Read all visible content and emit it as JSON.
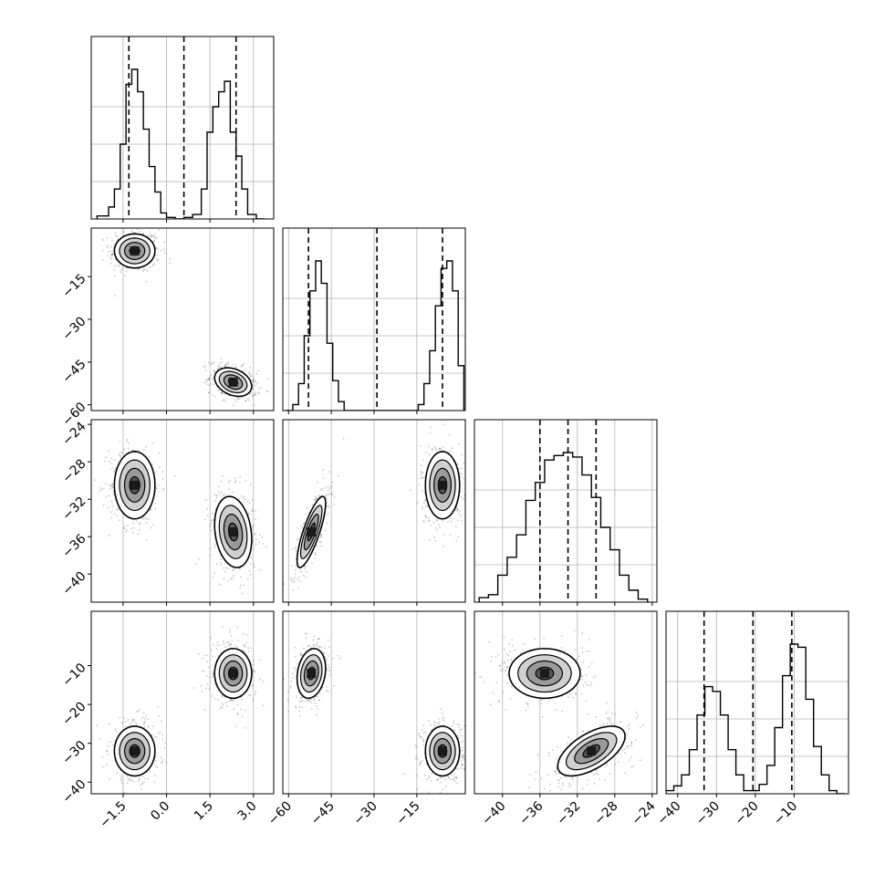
{
  "chart_data": {
    "type": "corner",
    "parameters": 4,
    "grid": true,
    "axis_ticks": [
      [
        "-1.5",
        "0.0",
        "1.5",
        "3.0"
      ],
      [
        "-60",
        "-45",
        "-30",
        "-15"
      ],
      [
        "-40",
        "-36",
        "-32",
        "-28",
        "-24"
      ],
      [
        "-40",
        "-30",
        "-20",
        "-10"
      ]
    ],
    "axis_ranges": [
      [
        -2.6,
        3.7
      ],
      [
        -62,
        2
      ],
      [
        -43,
        -23.5
      ],
      [
        -43,
        4
      ]
    ],
    "histograms": [
      {
        "param": 0,
        "quantiles": [
          -1.3,
          0.6,
          2.4
        ],
        "bin_edges": [
          -2.4,
          -2.0,
          -1.8,
          -1.6,
          -1.4,
          -1.2,
          -1.0,
          -0.8,
          -0.6,
          -0.4,
          -0.2,
          0.0,
          0.3,
          0.6,
          0.9,
          1.2,
          1.4,
          1.6,
          1.8,
          2.0,
          2.2,
          2.4,
          2.6,
          2.8,
          3.1,
          3.4
        ],
        "counts": [
          2,
          8,
          20,
          50,
          90,
          100,
          85,
          60,
          35,
          18,
          4,
          1,
          0,
          1,
          3,
          20,
          58,
          75,
          85,
          92,
          58,
          42,
          20,
          3,
          0
        ]
      },
      {
        "param": 1,
        "quantiles": [
          -53,
          -29,
          -6
        ],
        "bin_edges": [
          -61.0,
          -58.5,
          -56.5,
          -54.5,
          -52.5,
          -50.5,
          -48.5,
          -46.5,
          -44.5,
          -42.5,
          -40.5,
          -37.5,
          -33.5,
          -29.5,
          -25.5,
          -21.5,
          -18.5,
          -16.5,
          -14.5,
          -12.5,
          -10.5,
          -8.5,
          -6.5,
          -4.5,
          -2.5,
          -0.5,
          1.5
        ],
        "counts": [
          0,
          4,
          18,
          50,
          80,
          100,
          85,
          45,
          20,
          6,
          0,
          0,
          0,
          0,
          0,
          0,
          0,
          0,
          4,
          18,
          40,
          70,
          95,
          100,
          80,
          30
        ]
      },
      {
        "param": 2,
        "quantiles": [
          -36.0,
          -33.0,
          -30.0
        ],
        "bin_edges": [
          -42.5,
          -41.5,
          -40.5,
          -39.5,
          -38.5,
          -37.5,
          -36.5,
          -35.5,
          -34.5,
          -33.5,
          -32.5,
          -31.5,
          -30.5,
          -29.5,
          -28.5,
          -27.5,
          -26.5,
          -25.5,
          -24.5
        ],
        "counts": [
          3,
          5,
          18,
          30,
          45,
          68,
          80,
          95,
          98,
          100,
          97,
          85,
          70,
          50,
          35,
          18,
          8,
          2
        ]
      },
      {
        "param": 3,
        "quantiles": [
          -33.2,
          -20.6,
          -10.6
        ],
        "bin_edges": [
          -43,
          -41,
          -39,
          -37,
          -35,
          -33,
          -31,
          -29,
          -27,
          -25,
          -23,
          -21,
          -19,
          -17,
          -15,
          -13,
          -11,
          -9,
          -7,
          -5,
          -3,
          -1,
          1,
          3
        ],
        "counts": [
          2,
          5,
          12,
          28,
          50,
          68,
          65,
          50,
          28,
          12,
          2,
          2,
          6,
          18,
          42,
          75,
          95,
          93,
          60,
          30,
          12,
          2,
          0
        ]
      }
    ],
    "joint_modes": [
      {
        "param_values": [
          -1.1,
          -6.0,
          -30.5,
          -32.0
        ],
        "widths": [
          0.35,
          3.0,
          1.8,
          3.2
        ],
        "rho": {
          "0-1": 0.0,
          "0-2": 0.0,
          "0-3": 0.0,
          "1-2": 0.0,
          "1-3": 0.0,
          "2-3": 0.6
        }
      },
      {
        "param_values": [
          2.3,
          -52.0,
          -35.5,
          -12.0
        ],
        "widths": [
          0.32,
          2.5,
          1.9,
          3.2
        ],
        "rho": {
          "0-1": -0.3,
          "0-2": -0.2,
          "0-3": 0.0,
          "1-2": 0.8,
          "1-3": 0.2,
          "2-3": 0.0
        }
      }
    ]
  }
}
